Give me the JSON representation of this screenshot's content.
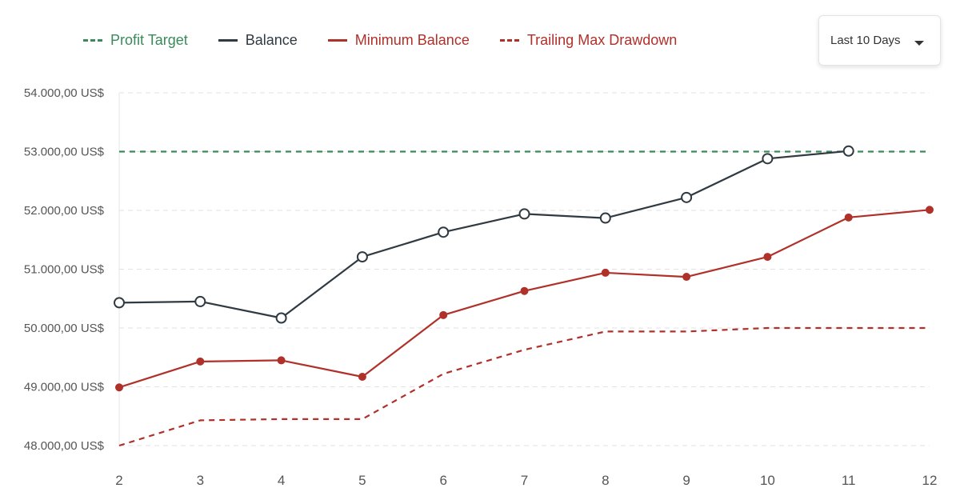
{
  "legend": {
    "items": [
      {
        "label": "Profit Target",
        "color": "#3a8a5a",
        "style": "dashed"
      },
      {
        "label": "Balance",
        "color": "#2f3a42",
        "style": "solid"
      },
      {
        "label": "Minimum Balance",
        "color": "#b0302a",
        "style": "solid"
      },
      {
        "label": "Trailing Max Drawdown",
        "color": "#b0302a",
        "style": "dashed"
      }
    ]
  },
  "range_selector": {
    "value": "Last 10 Days",
    "icon": "caret-down-icon"
  },
  "chart_data": {
    "type": "line",
    "x": [
      2,
      3,
      4,
      5,
      6,
      7,
      8,
      9,
      10,
      11,
      12
    ],
    "xticks": [
      "2",
      "3",
      "4",
      "5",
      "6",
      "7",
      "8",
      "9",
      "10",
      "11",
      "12"
    ],
    "yticks": [
      "48.000,00 US$",
      "49.000,00 US$",
      "50.000,00 US$",
      "51.000,00 US$",
      "52.000,00 US$",
      "53.000,00 US$",
      "54.000,00 US$"
    ],
    "ylim": [
      48000,
      54000
    ],
    "xlim": [
      2,
      12
    ],
    "grid": true,
    "legend_position": "top-left",
    "series": [
      {
        "name": "Profit Target",
        "color": "#3a8a5a",
        "style": "dashed",
        "x": [
          2,
          12
        ],
        "values": [
          53000,
          53000
        ]
      },
      {
        "name": "Balance",
        "color": "#2f3a42",
        "style": "solid",
        "markers": "hollow",
        "x": [
          2,
          3,
          4,
          5,
          6,
          7,
          8,
          9,
          10,
          11
        ],
        "values": [
          50430,
          50450,
          50170,
          51210,
          51630,
          51940,
          51870,
          52220,
          52880,
          53010
        ]
      },
      {
        "name": "Minimum Balance",
        "color": "#b0302a",
        "style": "solid",
        "markers": "filled",
        "x": [
          2,
          3,
          4,
          5,
          6,
          7,
          8,
          9,
          10,
          11,
          12
        ],
        "values": [
          48990,
          49430,
          49450,
          49170,
          50220,
          50630,
          50940,
          50870,
          51210,
          51880,
          52010
        ]
      },
      {
        "name": "Trailing Max Drawdown",
        "color": "#b0302a",
        "style": "dashed",
        "x": [
          2,
          3,
          4,
          5,
          6,
          7,
          8,
          9,
          10,
          11,
          12
        ],
        "values": [
          48000,
          48430,
          48450,
          48450,
          49220,
          49630,
          49940,
          49940,
          50000,
          50000,
          50000
        ]
      }
    ]
  }
}
